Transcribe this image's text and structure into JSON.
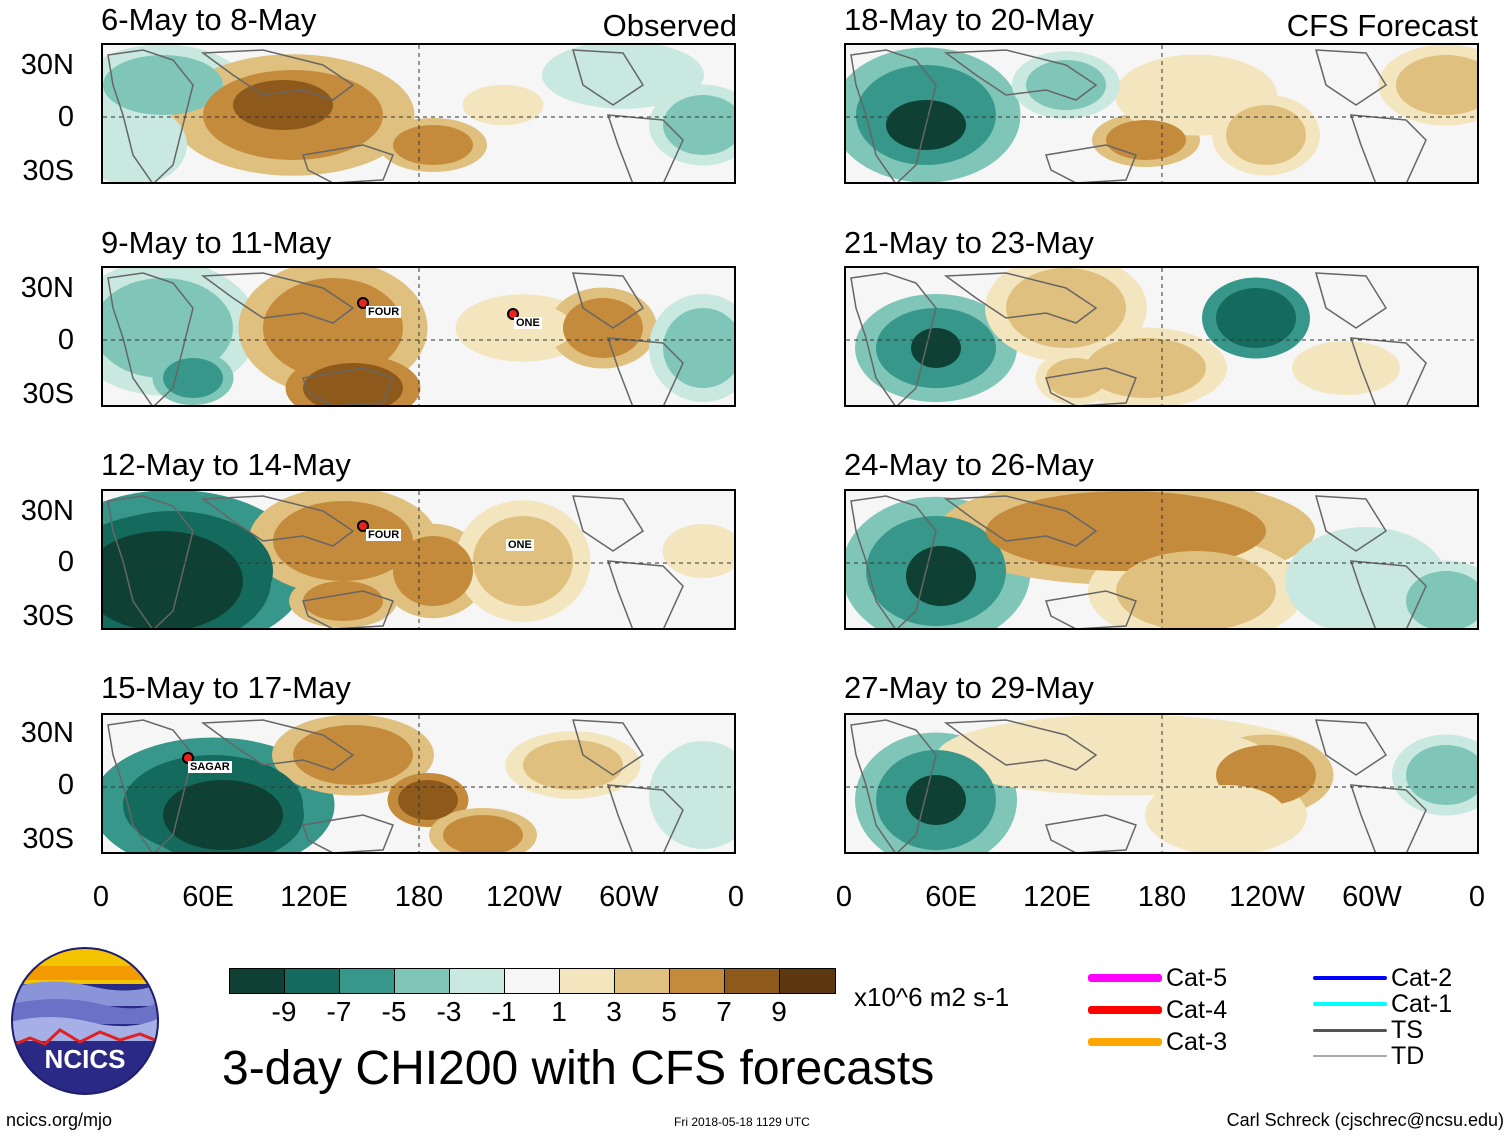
{
  "panel_titles": [
    "6-May to 8-May",
    "9-May to 11-May",
    "12-May to 14-May",
    "15-May to 17-May",
    "18-May to 20-May",
    "21-May to 23-May",
    "24-May to 26-May",
    "27-May to 29-May"
  ],
  "observed_label": "Observed",
  "forecast_label": "CFS Forecast",
  "lat_labels": [
    "30N",
    "0",
    "30S"
  ],
  "lon_labels": [
    "0",
    "60E",
    "120E",
    "180",
    "120W",
    "60W",
    "0"
  ],
  "storms": {
    "four": "FOUR",
    "one": "ONE",
    "sagar": "SAGAR"
  },
  "colorbar": {
    "colors": [
      "#0f4034",
      "#146b5d",
      "#36978a",
      "#7fc6b8",
      "#c8e8e0",
      "#f6f6f6",
      "#f3e5bd",
      "#dfc07e",
      "#c58b3d",
      "#8e5a1c",
      "#5c3710"
    ],
    "labels": [
      "-9",
      "-7",
      "-5",
      "-3",
      "-1",
      "1",
      "3",
      "5",
      "7",
      "9"
    ],
    "units": "x10^6 m2 s-1"
  },
  "legend": [
    {
      "label": "Cat-5",
      "color": "#ff00ff"
    },
    {
      "label": "Cat-4",
      "color": "#ff0000"
    },
    {
      "label": "Cat-3",
      "color": "#ffa500"
    },
    {
      "label": "Cat-2",
      "color": "#0000ff"
    },
    {
      "label": "Cat-1",
      "color": "#00ffff"
    },
    {
      "label": "TS",
      "color": "#555555"
    },
    {
      "label": "TD",
      "color": "#aaaaaa"
    }
  ],
  "logo_text": "NCICS",
  "main_title": "3-day CHI200 with CFS forecasts",
  "footer_left": "ncics.org/mjo",
  "footer_center": "Fri 2018-05-18 1129 UTC",
  "footer_right": "Carl Schreck (cjschrec@ncsu.edu)"
}
